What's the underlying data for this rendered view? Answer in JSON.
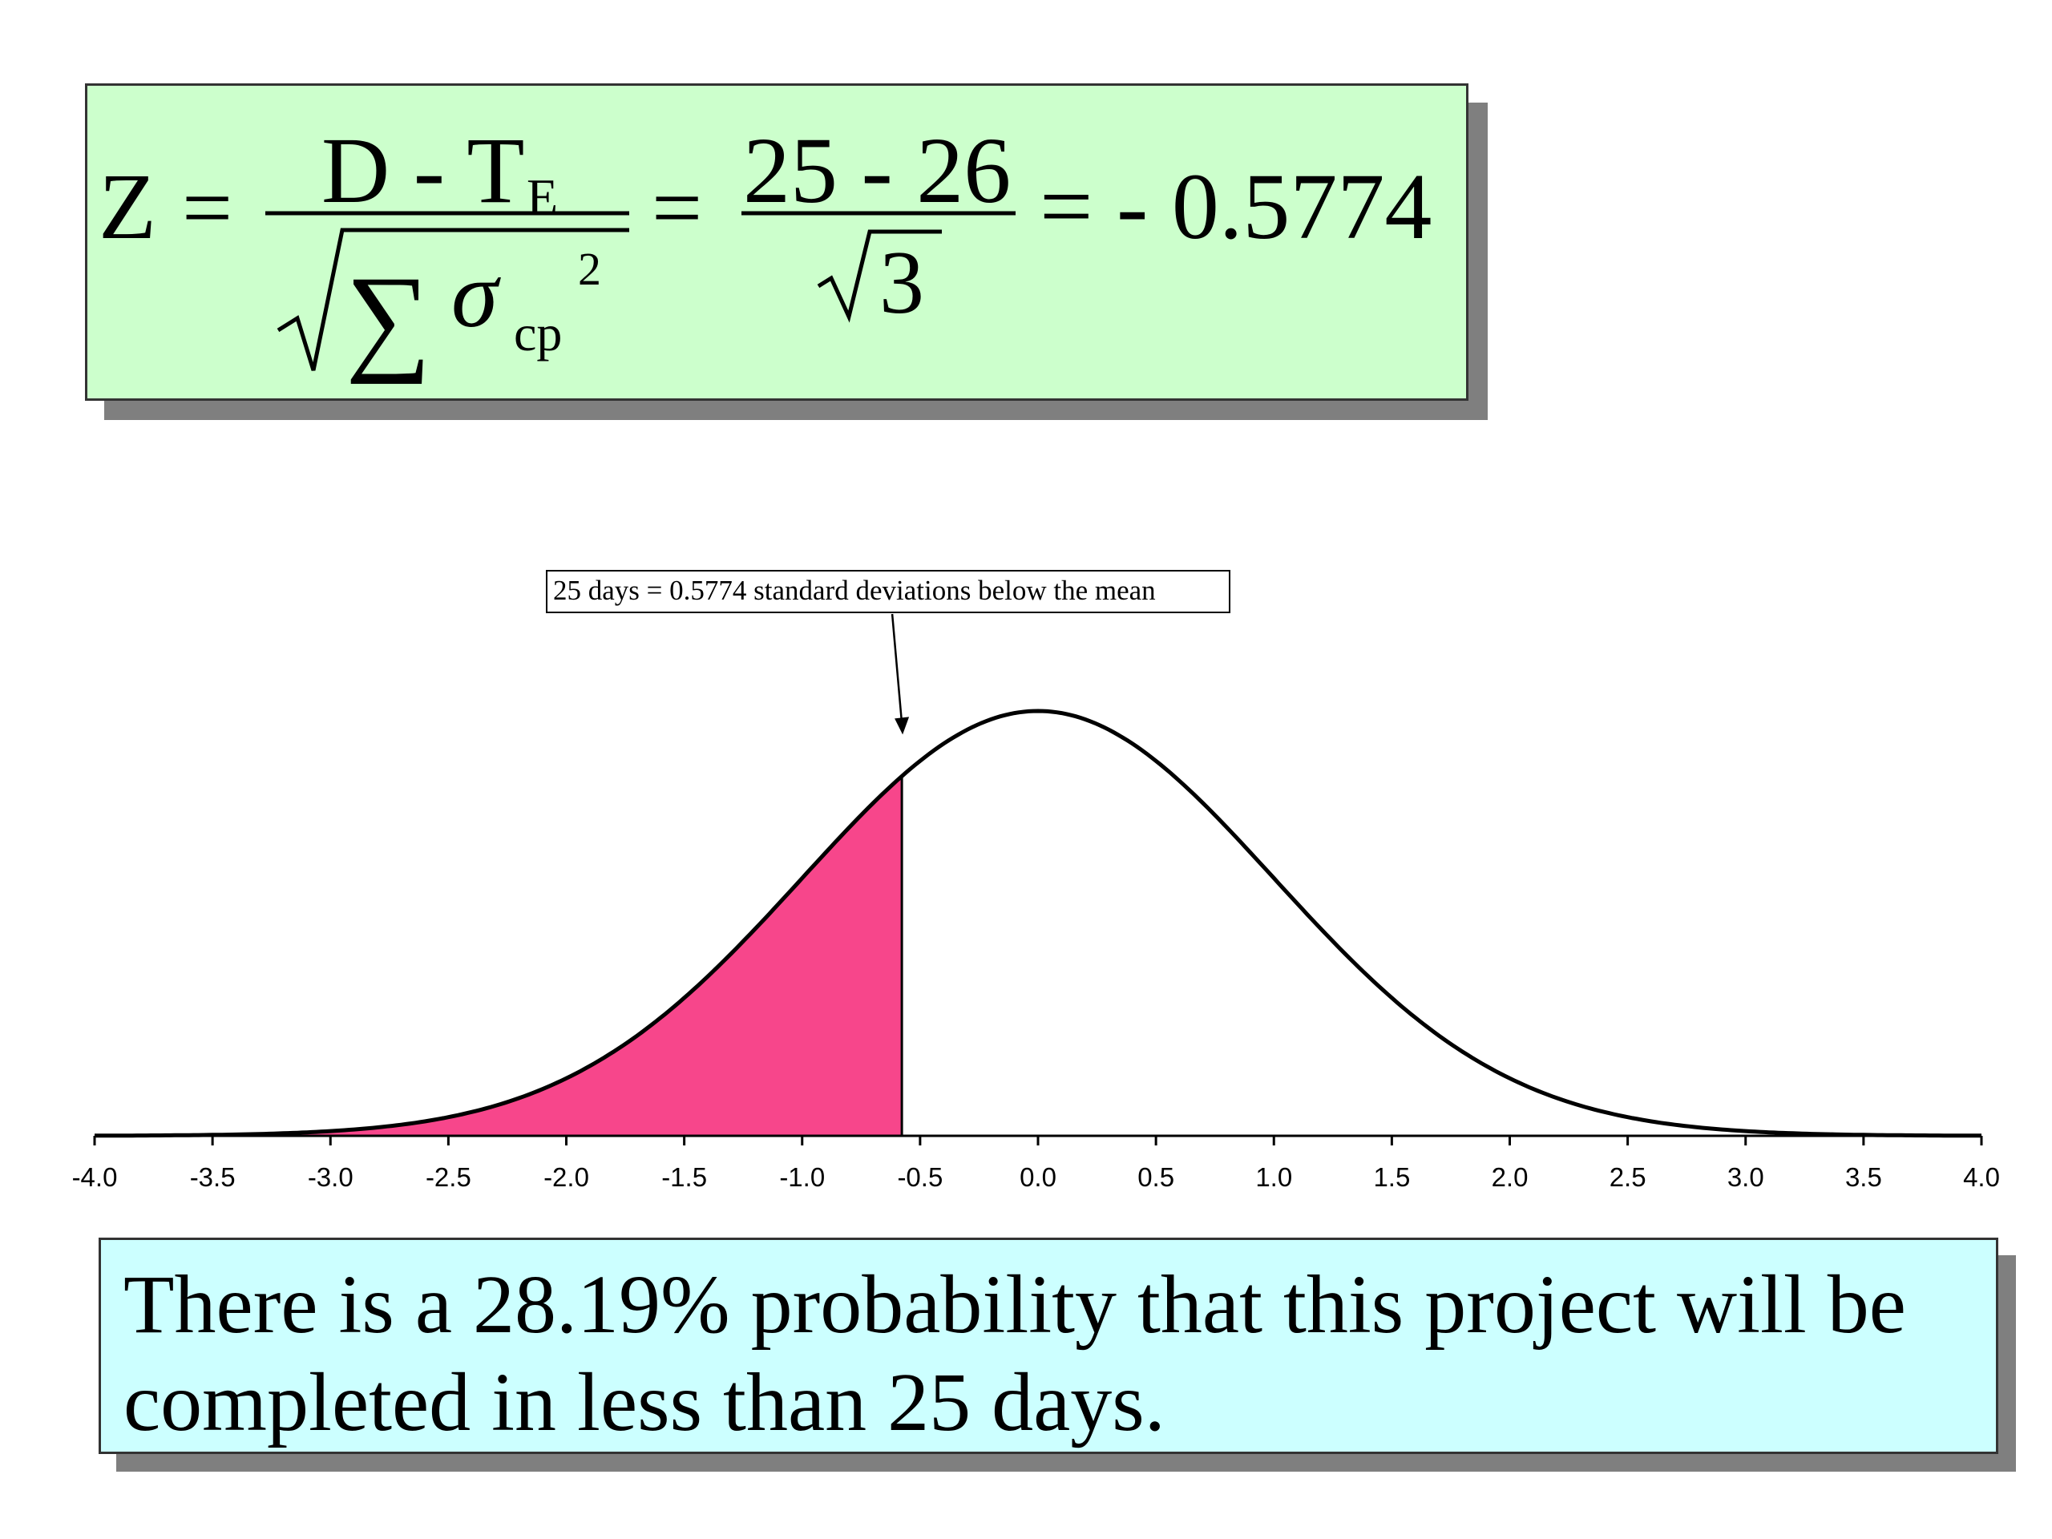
{
  "formula": {
    "z_label": "Z",
    "equals": "=",
    "numerator_symbolic": "D - T",
    "numerator_subscript": "E",
    "sum_symbol": "∑",
    "sigma": "σ",
    "sigma_subscript": "cp",
    "sigma_superscript": "2",
    "numerator_numeric": "25 - 26",
    "denominator_numeric": "3",
    "result": "= - 0.5774"
  },
  "chart_data": {
    "type": "area",
    "annotation": "25 days = 0.5774 standard deviations below the mean",
    "x_ticks": [
      "-4.0",
      "-3.5",
      "-3.0",
      "-2.5",
      "-2.0",
      "-1.5",
      "-1.0",
      "-0.5",
      "0.0",
      "0.5",
      "1.0",
      "1.5",
      "2.0",
      "2.5",
      "3.0",
      "3.5",
      "4.0"
    ],
    "xlim": [
      -4.0,
      4.0
    ],
    "curve": "standard normal density",
    "mean": 0,
    "sd": 1,
    "shaded_region": {
      "from": -4.0,
      "to": -0.5774
    },
    "annotation_x": -0.5774,
    "colors": {
      "shade": "#f7468b",
      "curve": "#000000"
    },
    "grid": false,
    "y_axis_visible": false
  },
  "conclusion": {
    "text": "There is a 28.19% probability that this project will be completed in less than 25 days."
  }
}
